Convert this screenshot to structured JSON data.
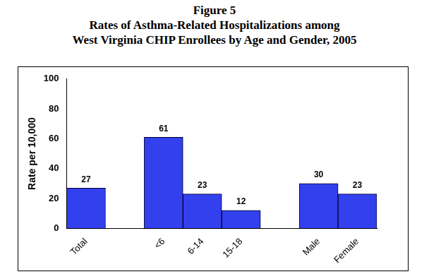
{
  "chart_data": {
    "type": "bar",
    "title": [
      "Figure 5",
      "Rates of Asthma-Related Hospitalizations among",
      "West Virginia CHIP Enrollees by Age and Gender, 2005"
    ],
    "y_label": "Rate per 10,000",
    "categories": [
      "Total",
      null,
      "<6",
      "6-14",
      "15-18",
      null,
      "Male",
      "Female"
    ],
    "values": [
      27,
      null,
      61,
      23,
      12,
      null,
      30,
      23
    ],
    "color": "#3340ee",
    "ylim": [
      0,
      100
    ],
    "yticks": [
      0,
      20,
      40,
      60,
      80,
      100
    ],
    "grid": false,
    "data_labels": true
  }
}
